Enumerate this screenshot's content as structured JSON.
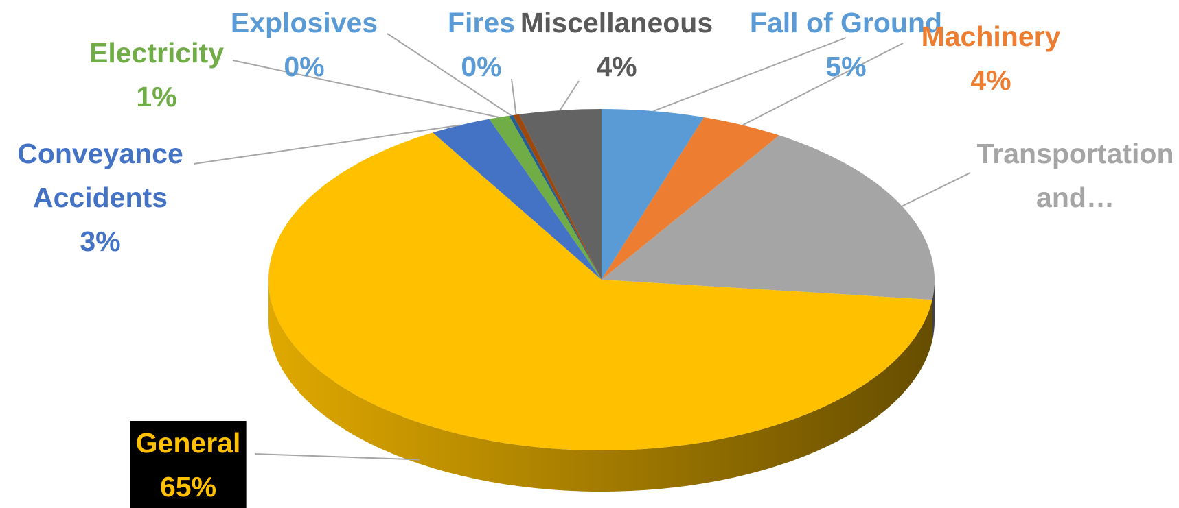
{
  "chart_data": {
    "type": "pie3d",
    "categories": [
      "Fall of Ground",
      "Machinery",
      "Transportation and…",
      "General",
      "Conveyance Accidents",
      "Electricity",
      "Explosives",
      "Fires",
      "Miscellaneous"
    ],
    "values": [
      5,
      4,
      18,
      65,
      3,
      1,
      0.2,
      0.3,
      4
    ],
    "value_labels": [
      "5%",
      "4%",
      null,
      "65%",
      "3%",
      "1%",
      "0%",
      "0%",
      "4%"
    ],
    "colors": [
      "#5b9bd5",
      "#ed7d31",
      "#a5a5a5",
      "#ffc000",
      "#4472c4",
      "#70ad47",
      "#255e91",
      "#9e480e",
      "#636363"
    ],
    "label_colors": [
      "#5b9bd5",
      "#ed7d31",
      "#a5a5a5",
      "#ffc000",
      "#4472c4",
      "#70ad47",
      "#5b9bd5",
      "#5b9bd5",
      "#595959"
    ]
  }
}
